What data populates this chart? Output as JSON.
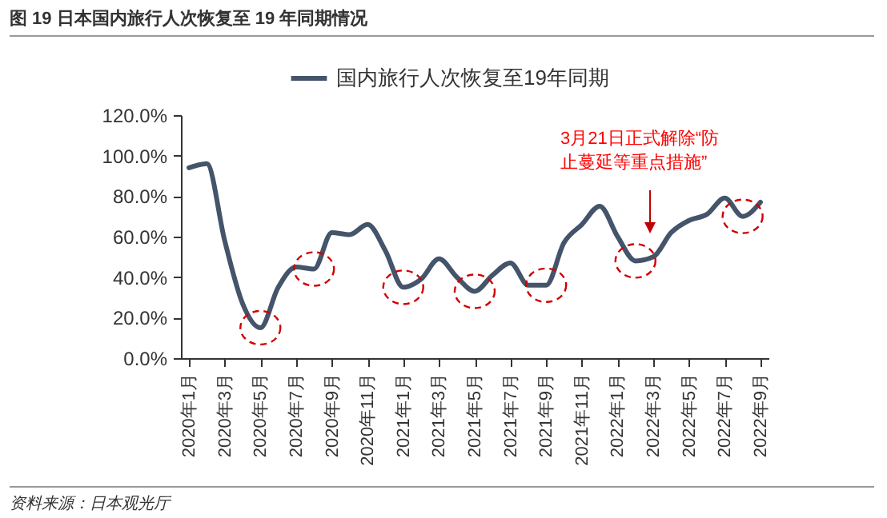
{
  "chart_data": {
    "type": "line",
    "title": "图 19 日本国内旅行人次恢复至 19 年同期情况",
    "categories": [
      "2020年1月",
      null,
      "2020年3月",
      null,
      "2020年5月",
      null,
      "2020年7月",
      null,
      "2020年9月",
      null,
      "2020年11月",
      null,
      "2021年1月",
      null,
      "2021年3月",
      null,
      "2021年5月",
      null,
      "2021年7月",
      null,
      "2021年9月",
      null,
      "2021年11月",
      null,
      "2022年1月",
      null,
      "2022年3月",
      null,
      "2022年5月",
      null,
      "2022年7月",
      null,
      "2022年9月"
    ],
    "series": [
      {
        "name": "国内旅行人次恢复至19年同期",
        "color": "#44546a",
        "values": [
          94,
          96,
          58,
          27,
          15,
          35,
          45,
          44,
          62,
          61,
          66,
          53,
          35,
          39,
          49,
          40,
          33,
          41,
          47,
          36,
          36,
          57,
          66,
          75,
          60,
          48,
          50,
          62,
          68,
          71,
          79,
          70,
          77
        ]
      }
    ],
    "ylim": [
      0,
      120
    ],
    "yticks": [
      {
        "value": 0,
        "label": "0.0%"
      },
      {
        "value": 20,
        "label": "20.0%"
      },
      {
        "value": 40,
        "label": "40.0%"
      },
      {
        "value": 60,
        "label": "60.0%"
      },
      {
        "value": 80,
        "label": "80.0%"
      },
      {
        "value": 100,
        "label": "100.0%"
      },
      {
        "value": 120,
        "label": "120.0%"
      }
    ],
    "legend": "top",
    "grid": false,
    "line_style": "solid",
    "marker": "none",
    "annotations": [
      "3月21日正式解除“防止蔓延等重点措施”",
      "资料来源：日本观光厅"
    ]
  }
}
